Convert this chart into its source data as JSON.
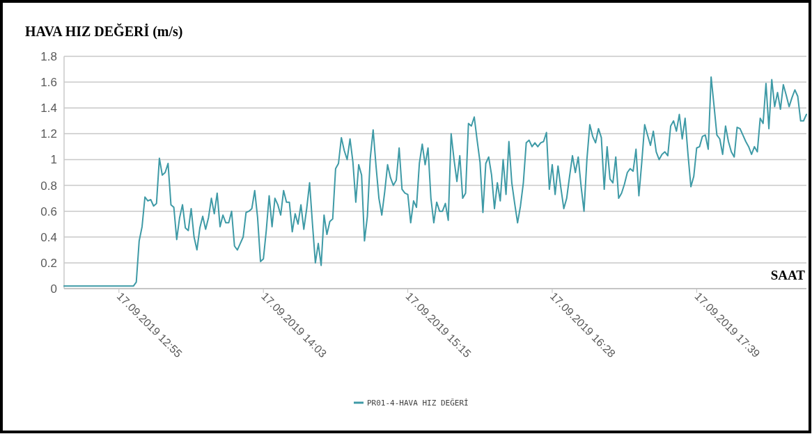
{
  "chart_data": {
    "type": "line",
    "title": "HAVA HIZ DEĞERİ (m/s)",
    "xlabel": "SAAT",
    "categories": [
      null,
      null,
      null,
      null,
      null,
      null,
      null,
      null,
      null,
      null,
      null,
      null,
      null,
      null,
      null,
      null,
      null,
      null,
      null,
      "17.09.2019 12:55",
      null,
      null,
      null,
      null,
      null,
      null,
      null,
      null,
      null,
      null,
      null,
      null,
      null,
      null,
      null,
      null,
      null,
      null,
      null,
      null,
      null,
      null,
      null,
      null,
      null,
      null,
      null,
      null,
      null,
      null,
      null,
      null,
      null,
      null,
      null,
      null,
      null,
      null,
      null,
      null,
      null,
      null,
      null,
      null,
      null,
      null,
      null,
      null,
      null,
      "17.09.2019 14:03",
      null,
      null,
      null,
      null,
      null,
      null,
      null,
      null,
      null,
      null,
      null,
      null,
      null,
      null,
      null,
      null,
      null,
      null,
      null,
      null,
      null,
      null,
      null,
      null,
      null,
      null,
      null,
      null,
      null,
      null,
      null,
      null,
      null,
      null,
      null,
      null,
      null,
      null,
      null,
      null,
      null,
      null,
      null,
      null,
      null,
      null,
      null,
      null,
      null,
      "17.09.2019 15:15",
      null,
      null,
      null,
      null,
      null,
      null,
      null,
      null,
      null,
      null,
      null,
      null,
      null,
      null,
      null,
      null,
      null,
      null,
      null,
      null,
      null,
      null,
      null,
      null,
      null,
      null,
      null,
      null,
      null,
      null,
      null,
      null,
      null,
      null,
      null,
      null,
      null,
      null,
      null,
      null,
      null,
      null,
      null,
      null,
      null,
      null,
      null,
      null,
      null,
      "17.09.2019 16:28",
      null,
      null,
      null,
      null,
      null,
      null,
      null,
      null,
      null,
      null,
      null,
      null,
      null,
      null,
      null,
      null,
      null,
      null,
      null,
      null,
      null,
      null,
      null,
      null,
      null,
      null,
      null,
      null,
      null,
      null,
      null,
      null,
      null,
      null,
      null,
      null,
      null,
      null,
      null,
      null,
      null,
      null,
      null,
      null,
      null,
      null,
      null,
      null,
      null,
      "17.09.2019 17:39",
      null,
      null,
      null,
      null,
      null,
      null,
      null,
      null,
      null,
      null,
      null,
      null,
      null,
      null,
      null,
      null,
      null,
      null,
      null,
      null,
      null,
      null,
      null,
      null,
      null,
      null,
      null,
      null,
      null,
      null,
      null,
      null,
      null,
      null,
      null,
      null,
      null,
      null
    ],
    "series": [
      {
        "name": "PR01-4-HAVA HIZ DEĞERİ",
        "color": "#3e9aa6",
        "values": [
          0.02,
          0.02,
          0.02,
          0.02,
          0.02,
          0.02,
          0.02,
          0.02,
          0.02,
          0.02,
          0.02,
          0.02,
          0.02,
          0.02,
          0.02,
          0.02,
          0.02,
          0.02,
          0.02,
          0.02,
          0.02,
          0.02,
          0.02,
          0.02,
          0.02,
          0.05,
          0.37,
          0.48,
          0.71,
          0.68,
          0.69,
          0.64,
          0.66,
          1.01,
          0.88,
          0.9,
          0.97,
          0.65,
          0.63,
          0.38,
          0.55,
          0.65,
          0.47,
          0.45,
          0.62,
          0.4,
          0.3,
          0.47,
          0.56,
          0.46,
          0.55,
          0.7,
          0.58,
          0.74,
          0.48,
          0.57,
          0.51,
          0.51,
          0.6,
          0.33,
          0.3,
          0.35,
          0.4,
          0.59,
          0.6,
          0.62,
          0.76,
          0.55,
          0.21,
          0.23,
          0.45,
          0.72,
          0.48,
          0.7,
          0.65,
          0.57,
          0.76,
          0.67,
          0.67,
          0.44,
          0.58,
          0.5,
          0.65,
          0.46,
          0.62,
          0.82,
          0.5,
          0.2,
          0.35,
          0.18,
          0.57,
          0.42,
          0.52,
          0.54,
          0.93,
          0.97,
          1.17,
          1.07,
          1.0,
          1.16,
          0.98,
          0.67,
          0.96,
          0.88,
          0.37,
          0.56,
          1.01,
          1.23,
          0.95,
          0.7,
          0.57,
          0.75,
          0.96,
          0.86,
          0.8,
          0.84,
          1.09,
          0.77,
          0.74,
          0.73,
          0.51,
          0.68,
          0.63,
          0.97,
          1.12,
          0.96,
          1.09,
          0.7,
          0.51,
          0.67,
          0.6,
          0.6,
          0.66,
          0.53,
          1.2,
          1.0,
          0.83,
          1.03,
          0.7,
          0.74,
          1.28,
          1.26,
          1.33,
          1.15,
          0.98,
          0.59,
          0.97,
          1.02,
          0.88,
          0.62,
          0.82,
          0.68,
          1.0,
          0.73,
          1.14,
          0.82,
          0.66,
          0.51,
          0.64,
          0.82,
          1.13,
          1.15,
          1.1,
          1.13,
          1.1,
          1.13,
          1.14,
          1.21,
          0.77,
          0.96,
          0.73,
          0.95,
          0.78,
          0.62,
          0.7,
          0.87,
          1.03,
          0.9,
          1.02,
          0.79,
          0.6,
          1.0,
          1.27,
          1.18,
          1.13,
          1.24,
          1.17,
          0.77,
          1.1,
          0.85,
          0.82,
          1.02,
          0.7,
          0.74,
          0.81,
          0.9,
          0.93,
          0.91,
          1.08,
          0.72,
          0.98,
          1.27,
          1.19,
          1.11,
          1.22,
          1.06,
          1.0,
          1.04,
          1.06,
          1.03,
          1.26,
          1.3,
          1.22,
          1.35,
          1.16,
          1.32,
          1.04,
          0.79,
          0.87,
          1.09,
          1.1,
          1.18,
          1.19,
          1.08,
          1.64,
          1.42,
          1.19,
          1.16,
          1.04,
          1.26,
          1.14,
          1.06,
          1.02,
          1.25,
          1.24,
          1.19,
          1.14,
          1.1,
          1.04,
          1.1,
          1.06,
          1.32,
          1.28,
          1.59,
          1.24,
          1.62,
          1.41,
          1.52,
          1.39,
          1.58,
          1.5,
          1.41,
          1.48,
          1.54,
          1.49,
          1.3,
          1.3,
          1.35
        ]
      }
    ],
    "ylim": [
      0,
      1.8
    ],
    "yticks": [
      0,
      0.2,
      0.4,
      0.6,
      0.8,
      1,
      1.2,
      1.4,
      1.6,
      1.8
    ],
    "grid": "y",
    "legend": "bottom"
  }
}
